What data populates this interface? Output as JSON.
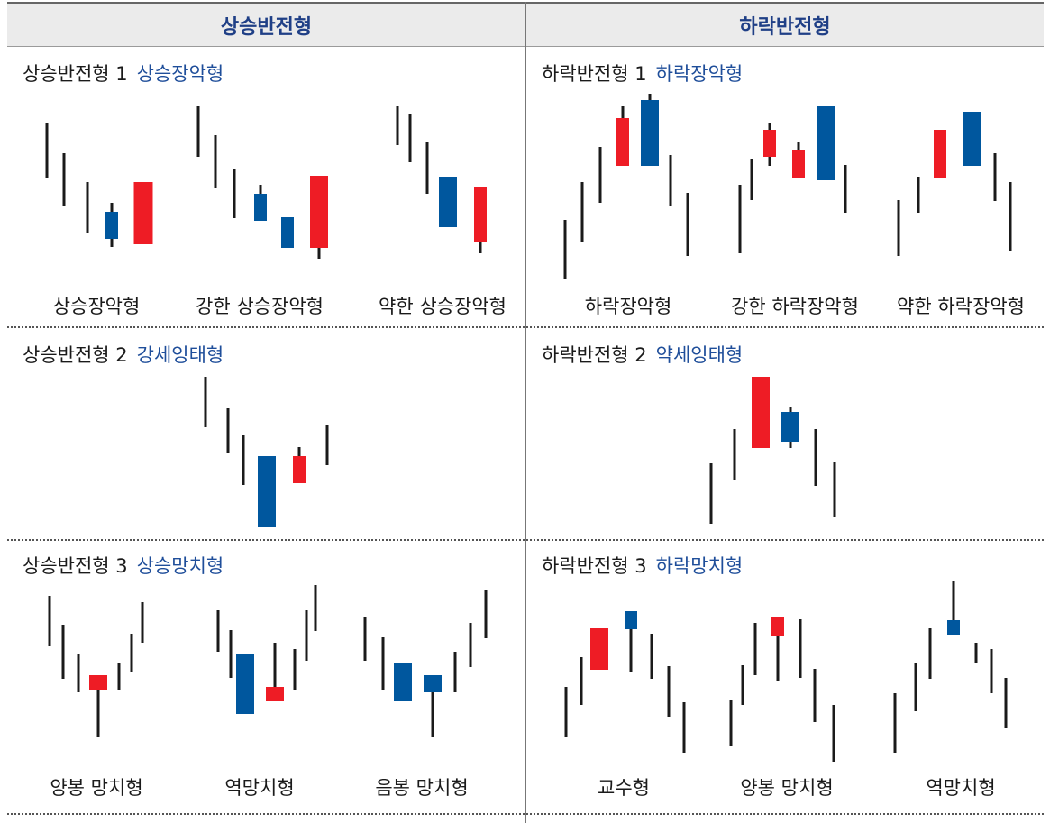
{
  "colors": {
    "up": "#ee1c25",
    "down": "#00579e",
    "bar": "#1a1a1a",
    "accent": "#1f4e9a",
    "header": "#1f3f86"
  },
  "headers": {
    "left": "상승반전형",
    "right": "하락반전형"
  },
  "sections": {
    "l1": {
      "title": "상승반전형 1",
      "highlight": "상승장악형"
    },
    "r1": {
      "title": "하락반전형 1",
      "highlight": "하락장악형"
    },
    "l2": {
      "title": "상승반전형 2",
      "highlight": "강세잉태형"
    },
    "r2": {
      "title": "하락반전형 2",
      "highlight": "약세잉태형"
    },
    "l3": {
      "title": "상승반전형 3",
      "highlight": "상승망치형"
    },
    "r3": {
      "title": "하락반전형 3",
      "highlight": "하락망치형"
    }
  },
  "labels": {
    "l1": [
      "상승장악형",
      "강한 상승장악형",
      "약한 상승장악형"
    ],
    "r1": [
      "하락장악형",
      "강한 하락장악형",
      "약한 하락장악형"
    ],
    "l3": [
      "양봉 망치형",
      "역망치형",
      "음봉 망치형"
    ],
    "r3": [
      "교수형",
      "양봉 망치형",
      "역망치형"
    ]
  }
}
